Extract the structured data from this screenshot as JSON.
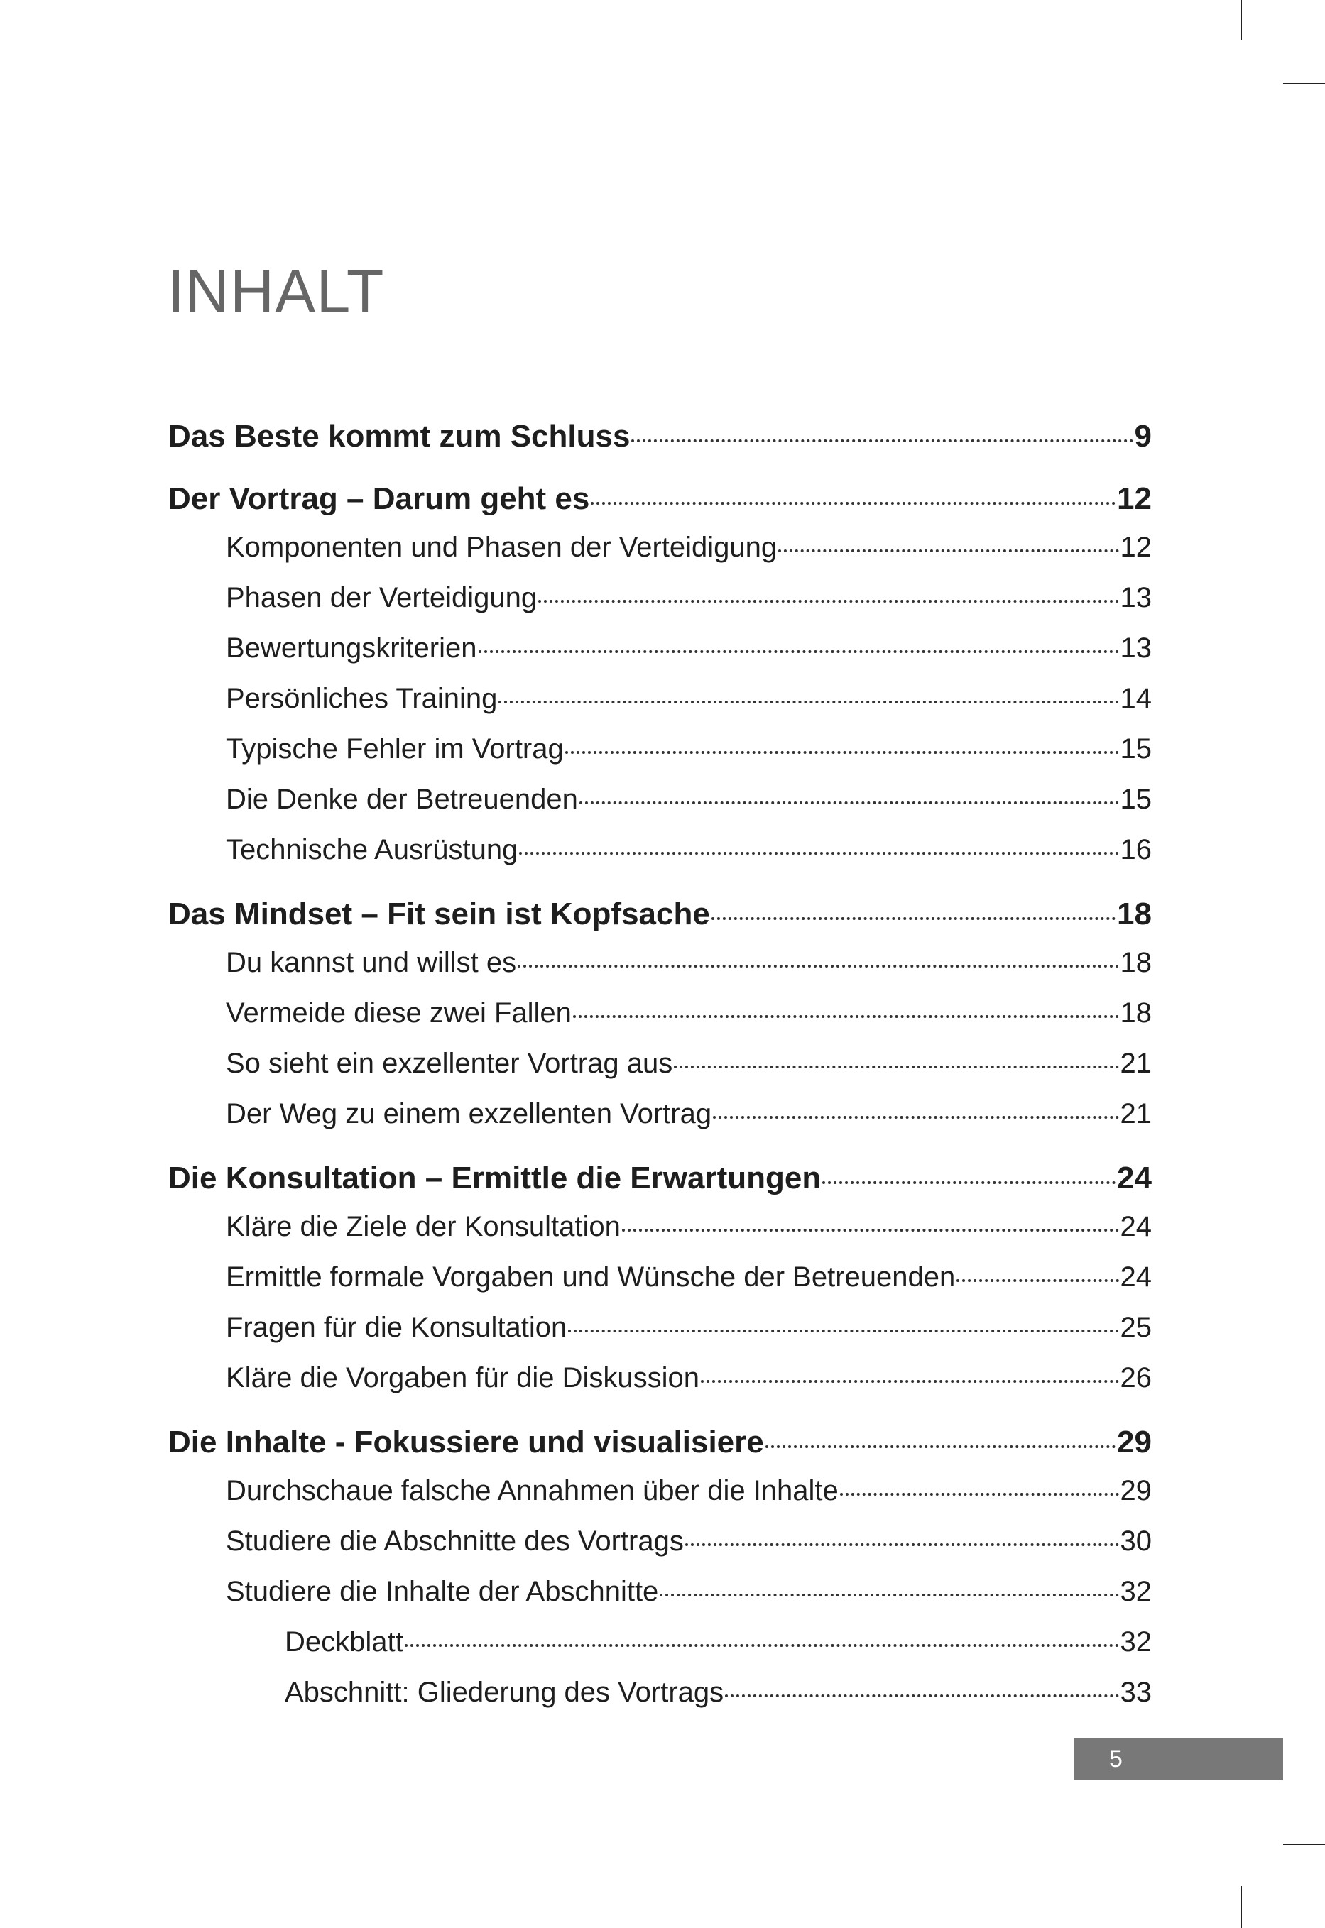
{
  "title": "INHALT",
  "entries": [
    {
      "level": 1,
      "label": "Das Beste kommt zum Schluss",
      "page": "9"
    },
    {
      "level": 1,
      "label": "Der Vortrag – Darum geht es",
      "page": "12"
    },
    {
      "level": 2,
      "label": "Komponenten und Phasen der Verteidigung",
      "page": "12"
    },
    {
      "level": 2,
      "label": "Phasen der Verteidigung",
      "page": "13"
    },
    {
      "level": 2,
      "label": "Bewertungskriterien",
      "page": "13"
    },
    {
      "level": 2,
      "label": "Persönliches Training",
      "page": "14"
    },
    {
      "level": 2,
      "label": "Typische Fehler im Vortrag",
      "page": "15"
    },
    {
      "level": 2,
      "label": "Die Denke der Betreuenden",
      "page": "15"
    },
    {
      "level": 2,
      "label": "Technische Ausrüstung",
      "page": "16"
    },
    {
      "level": 1,
      "label": "Das Mindset – Fit sein ist Kopfsache",
      "page": "18"
    },
    {
      "level": 2,
      "label": "Du kannst und willst es",
      "page": "18"
    },
    {
      "level": 2,
      "label": "Vermeide diese zwei Fallen",
      "page": "18"
    },
    {
      "level": 2,
      "label": "So sieht ein exzellenter Vortrag aus",
      "page": "21"
    },
    {
      "level": 2,
      "label": "Der Weg zu einem exzellenten Vortrag",
      "page": "21"
    },
    {
      "level": 1,
      "label": "Die Konsultation – Ermittle die Erwartungen",
      "page": "24"
    },
    {
      "level": 2,
      "label": "Kläre die Ziele der Konsultation",
      "page": "24"
    },
    {
      "level": 2,
      "label": "Ermittle formale Vorgaben und Wünsche der Betreuenden",
      "page": "24"
    },
    {
      "level": 2,
      "label": "Fragen für die Konsultation",
      "page": "25"
    },
    {
      "level": 2,
      "label": "Kläre die Vorgaben für die Diskussion",
      "page": "26"
    },
    {
      "level": 1,
      "label": "Die Inhalte - Fokussiere und visualisiere",
      "page": "29"
    },
    {
      "level": 2,
      "label": "Durchschaue falsche Annahmen über die Inhalte",
      "page": "29"
    },
    {
      "level": 2,
      "label": "Studiere die Abschnitte des Vortrags",
      "page": "30"
    },
    {
      "level": 2,
      "label": "Studiere die Inhalte der Abschnitte",
      "page": "32"
    },
    {
      "level": 3,
      "label": "Deckblatt",
      "page": "32"
    },
    {
      "level": 3,
      "label": "Abschnitt: Gliederung des Vortrags",
      "page": "33"
    }
  ],
  "page_number": "5",
  "colors": {
    "title": "#666666",
    "page_box": "#787878"
  }
}
